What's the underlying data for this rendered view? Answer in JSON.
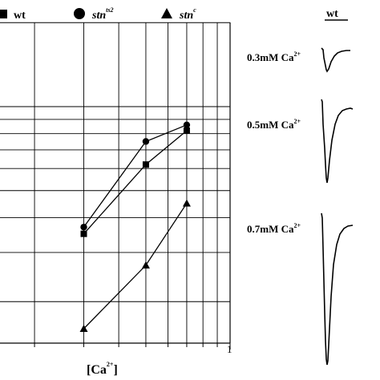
{
  "chart_data": {
    "type": "line",
    "title": "",
    "xlabel": "[Ca",
    "xlabel_superscript": "2+",
    "xlabel_suffix": "]",
    "ylabel": "",
    "x_scale": "log",
    "y_scale": "log",
    "x_tick_labels": [
      "1"
    ],
    "grid": true,
    "legend_position": "top",
    "x": [
      0.3,
      0.5,
      0.7
    ],
    "series": [
      {
        "name": "wt",
        "name_superscript": "",
        "marker": "square",
        "values": [
          3.5,
          6.2,
          8.2
        ]
      },
      {
        "name": "stn",
        "name_superscript": "ts2",
        "marker": "circle",
        "values": [
          3.7,
          7.5,
          8.6
        ]
      },
      {
        "name": "stn",
        "name_superscript": "c",
        "marker": "triangle",
        "values": [
          1.6,
          2.7,
          4.5
        ]
      }
    ]
  },
  "traces": {
    "header": "wt",
    "items": [
      {
        "label": "0.3mM Ca",
        "superscript": "2+"
      },
      {
        "label": "0.5mM Ca",
        "superscript": "2+"
      },
      {
        "label": "0.7mM Ca",
        "superscript": "2+"
      }
    ]
  },
  "colors": {
    "ink": "#000000",
    "grid": "#000000",
    "background": "#ffffff"
  }
}
